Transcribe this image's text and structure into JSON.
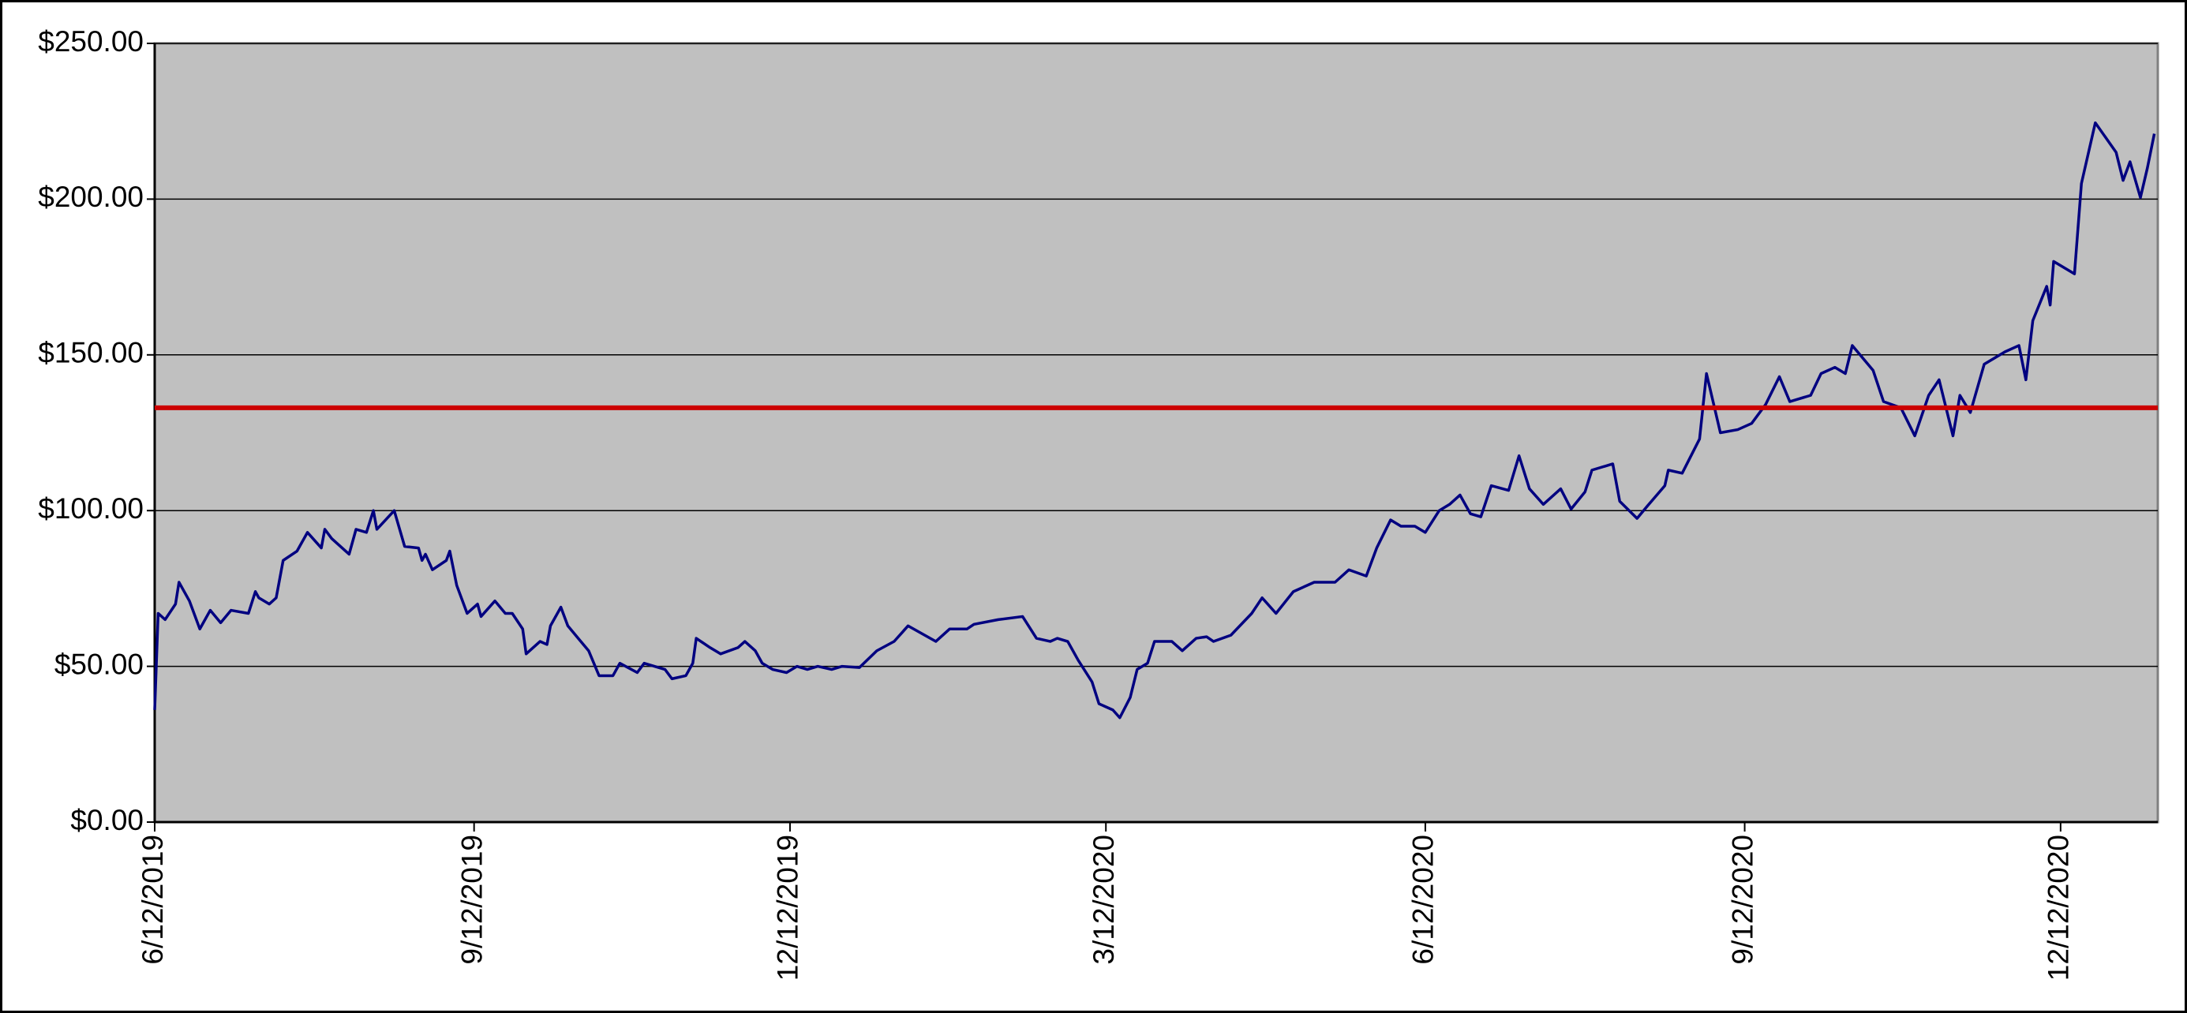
{
  "chart_data": {
    "type": "line",
    "xlim": [
      "2019-06-12",
      "2021-01-09"
    ],
    "xticks": [
      {
        "value": "2019-06-12",
        "label": "6/12/2019"
      },
      {
        "value": "2019-09-12",
        "label": "9/12/2019"
      },
      {
        "value": "2019-12-12",
        "label": "12/12/2019"
      },
      {
        "value": "2020-03-12",
        "label": "3/12/2020"
      },
      {
        "value": "2020-06-12",
        "label": "6/12/2020"
      },
      {
        "value": "2020-09-12",
        "label": "9/12/2020"
      },
      {
        "value": "2020-12-12",
        "label": "12/12/2020"
      }
    ],
    "ylim": [
      0,
      250
    ],
    "yticks": [
      {
        "value": 0,
        "label": "$0.00"
      },
      {
        "value": 50,
        "label": "$50.00"
      },
      {
        "value": 100,
        "label": "$100.00"
      },
      {
        "value": 150,
        "label": "$150.00"
      },
      {
        "value": 200,
        "label": "$200.00"
      },
      {
        "value": 250,
        "label": "$250.00"
      }
    ],
    "grid": true,
    "reference_line": {
      "value": 133,
      "color": "#cc0000"
    },
    "series": [
      {
        "color": "#000080",
        "x": [
          "2019-06-12",
          "2019-06-13",
          "2019-06-15",
          "2019-06-18",
          "2019-06-19",
          "2019-06-22",
          "2019-06-25",
          "2019-06-28",
          "2019-07-01",
          "2019-07-04",
          "2019-07-09",
          "2019-07-11",
          "2019-07-12",
          "2019-07-15",
          "2019-07-17",
          "2019-07-19",
          "2019-07-23",
          "2019-07-26",
          "2019-07-30",
          "2019-07-31",
          "2019-08-02",
          "2019-08-07",
          "2019-08-09",
          "2019-08-12",
          "2019-08-14",
          "2019-08-15",
          "2019-08-20",
          "2019-08-23",
          "2019-08-27",
          "2019-08-28",
          "2019-08-29",
          "2019-08-31",
          "2019-09-04",
          "2019-09-05",
          "2019-09-07",
          "2019-09-10",
          "2019-09-13",
          "2019-09-14",
          "2019-09-18",
          "2019-09-21",
          "2019-09-23",
          "2019-09-26",
          "2019-09-27",
          "2019-10-01",
          "2019-10-03",
          "2019-10-04",
          "2019-10-07",
          "2019-10-09",
          "2019-10-12",
          "2019-10-15",
          "2019-10-18",
          "2019-10-22",
          "2019-10-24",
          "2019-10-29",
          "2019-10-31",
          "2019-11-06",
          "2019-11-08",
          "2019-11-12",
          "2019-11-14",
          "2019-11-15",
          "2019-11-19",
          "2019-11-22",
          "2019-11-27",
          "2019-11-29",
          "2019-12-02",
          "2019-12-04",
          "2019-12-07",
          "2019-12-11",
          "2019-12-14",
          "2019-12-17",
          "2019-12-20",
          "2019-12-24",
          "2019-12-27",
          "2020-01-01",
          "2020-01-06",
          "2020-01-11",
          "2020-01-15",
          "2020-01-23",
          "2020-01-27",
          "2020-02-01",
          "2020-02-03",
          "2020-02-10",
          "2020-02-17",
          "2020-02-21",
          "2020-02-25",
          "2020-02-27",
          "2020-03-01",
          "2020-03-04",
          "2020-03-08",
          "2020-03-10",
          "2020-03-14",
          "2020-03-16",
          "2020-03-19",
          "2020-03-21",
          "2020-03-24",
          "2020-03-26",
          "2020-03-31",
          "2020-04-03",
          "2020-04-07",
          "2020-04-10",
          "2020-04-12",
          "2020-04-17",
          "2020-04-23",
          "2020-04-26",
          "2020-04-30",
          "2020-05-05",
          "2020-05-11",
          "2020-05-17",
          "2020-05-21",
          "2020-05-26",
          "2020-05-29",
          "2020-06-02",
          "2020-06-05",
          "2020-06-09",
          "2020-06-12",
          "2020-06-16",
          "2020-06-19",
          "2020-06-22",
          "2020-06-25",
          "2020-06-28",
          "2020-07-01",
          "2020-07-06",
          "2020-07-09",
          "2020-07-12",
          "2020-07-16",
          "2020-07-21",
          "2020-07-24",
          "2020-07-28",
          "2020-07-30",
          "2020-08-05",
          "2020-08-07",
          "2020-08-12",
          "2020-08-15",
          "2020-08-20",
          "2020-08-21",
          "2020-08-25",
          "2020-08-30",
          "2020-09-01",
          "2020-09-05",
          "2020-09-10",
          "2020-09-14",
          "2020-09-18",
          "2020-09-22",
          "2020-09-25",
          "2020-10-01",
          "2020-10-04",
          "2020-10-08",
          "2020-10-11",
          "2020-10-13",
          "2020-10-19",
          "2020-10-22",
          "2020-10-27",
          "2020-10-31",
          "2020-11-04",
          "2020-11-07",
          "2020-11-11",
          "2020-11-13",
          "2020-11-16",
          "2020-11-20",
          "2020-11-26",
          "2020-11-30",
          "2020-12-02",
          "2020-12-04",
          "2020-12-08",
          "2020-12-09",
          "2020-12-10",
          "2020-12-16",
          "2020-12-18",
          "2020-12-22",
          "2020-12-28",
          "2020-12-30",
          "2021-01-01",
          "2021-01-04",
          "2021-01-06",
          "2021-01-08"
        ],
        "values": [
          36,
          67,
          65,
          70,
          77,
          71,
          62,
          68,
          64,
          68,
          67,
          74,
          72,
          70,
          72,
          84,
          87,
          93,
          88,
          94,
          91,
          86,
          94,
          93,
          100,
          94,
          100,
          88.5,
          88,
          84,
          86,
          81,
          84,
          87,
          76,
          67,
          70,
          66,
          71,
          67,
          67,
          62,
          54,
          58,
          57,
          63,
          69,
          63,
          59,
          55,
          47,
          47,
          51,
          48,
          51,
          49,
          46,
          47,
          51,
          59,
          56,
          54,
          56,
          58,
          55,
          51,
          49,
          48,
          50,
          49,
          50,
          49,
          50,
          49.6,
          55,
          58,
          63,
          58,
          62,
          62,
          63.5,
          65,
          66,
          59,
          58,
          59,
          58,
          52,
          45,
          38,
          36,
          33.5,
          40,
          49,
          51,
          58,
          58,
          55,
          59,
          59.5,
          58,
          60,
          67,
          72,
          67,
          74,
          77,
          77,
          81,
          79,
          88,
          97,
          95,
          95,
          93,
          100,
          102,
          105,
          99,
          98,
          108,
          106.5,
          117.6,
          107,
          102,
          107,
          100.5,
          106,
          113,
          115,
          103,
          97.5,
          101.5,
          108,
          113,
          112,
          123,
          144,
          125,
          126,
          128,
          134,
          143,
          135,
          137,
          144,
          146,
          144,
          153,
          145,
          135,
          133,
          124,
          137,
          142,
          124,
          137,
          131.5,
          147,
          151,
          153,
          142,
          161,
          172,
          166,
          180,
          176,
          205,
          224.5,
          215,
          206,
          212,
          200.5,
          210,
          221
        ]
      }
    ]
  }
}
